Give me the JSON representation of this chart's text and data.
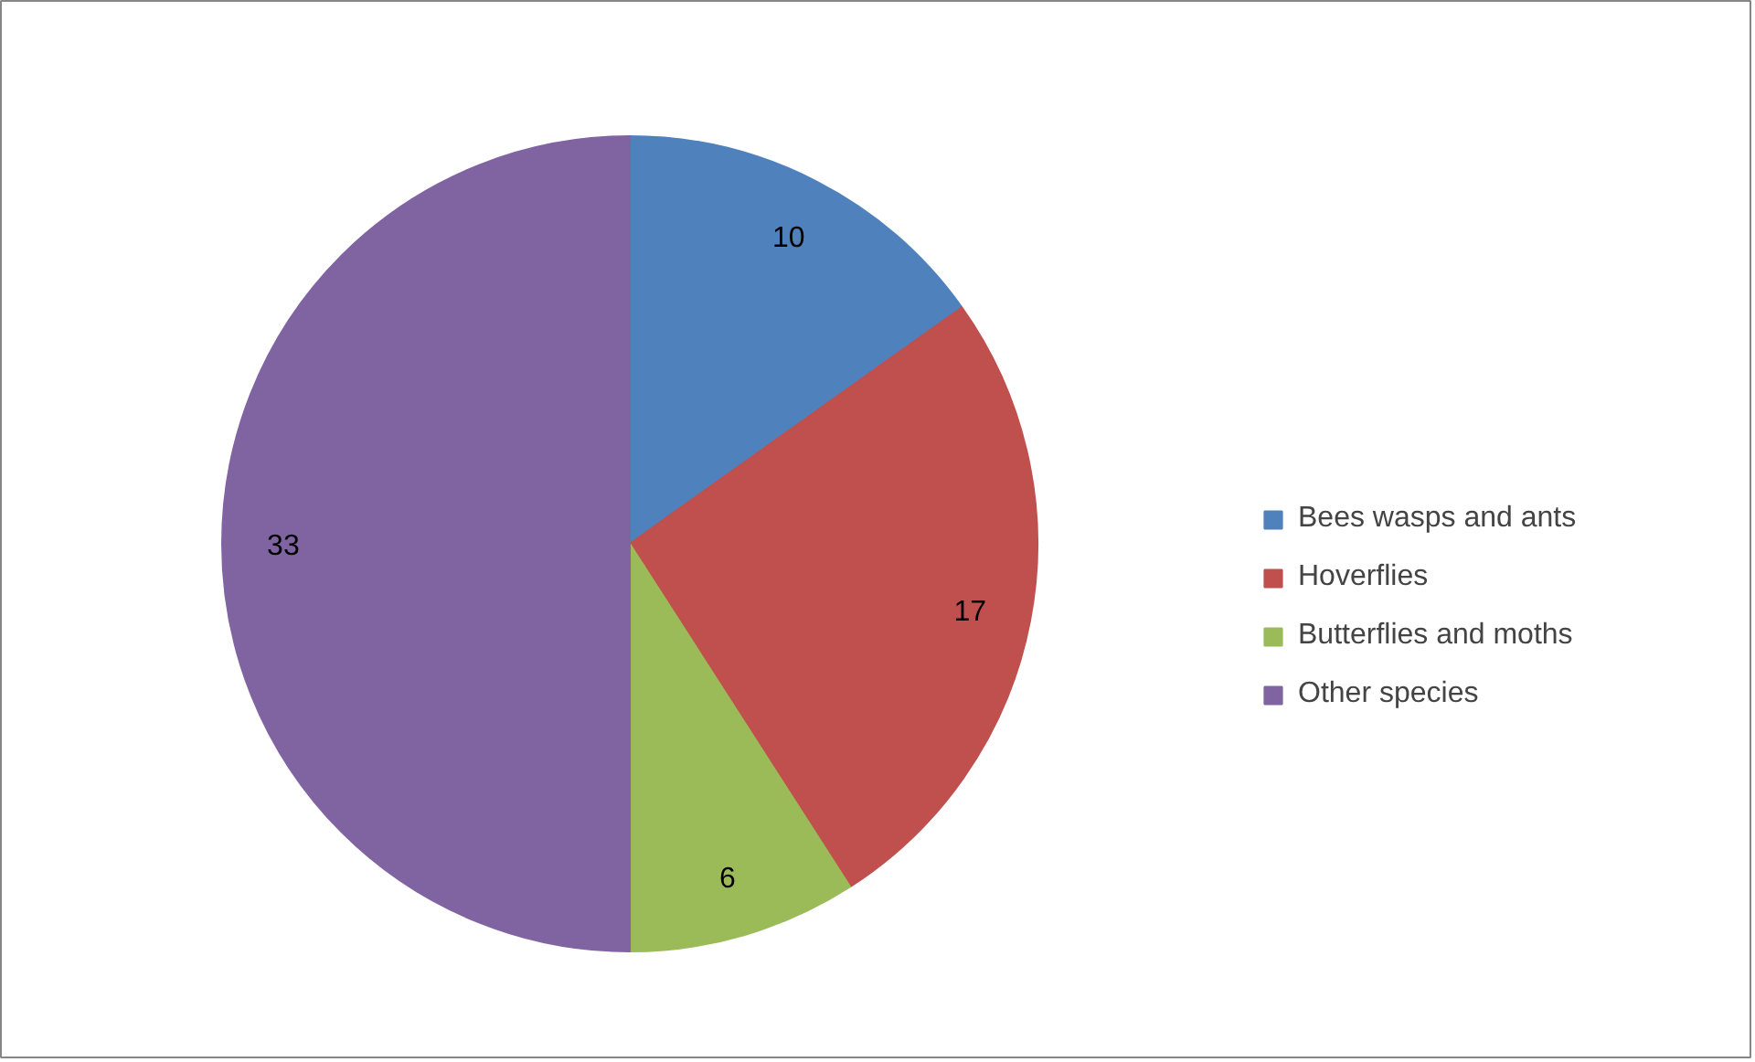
{
  "chart_data": {
    "type": "pie",
    "categories": [
      "Bees wasps and ants",
      "Hoverflies",
      "Butterflies and moths",
      "Other species"
    ],
    "values": [
      10,
      17,
      6,
      33
    ],
    "colors": [
      "#4f81bd",
      "#c0504d",
      "#9bbb59",
      "#8064a2"
    ],
    "data_labels": true,
    "legend": "right"
  }
}
